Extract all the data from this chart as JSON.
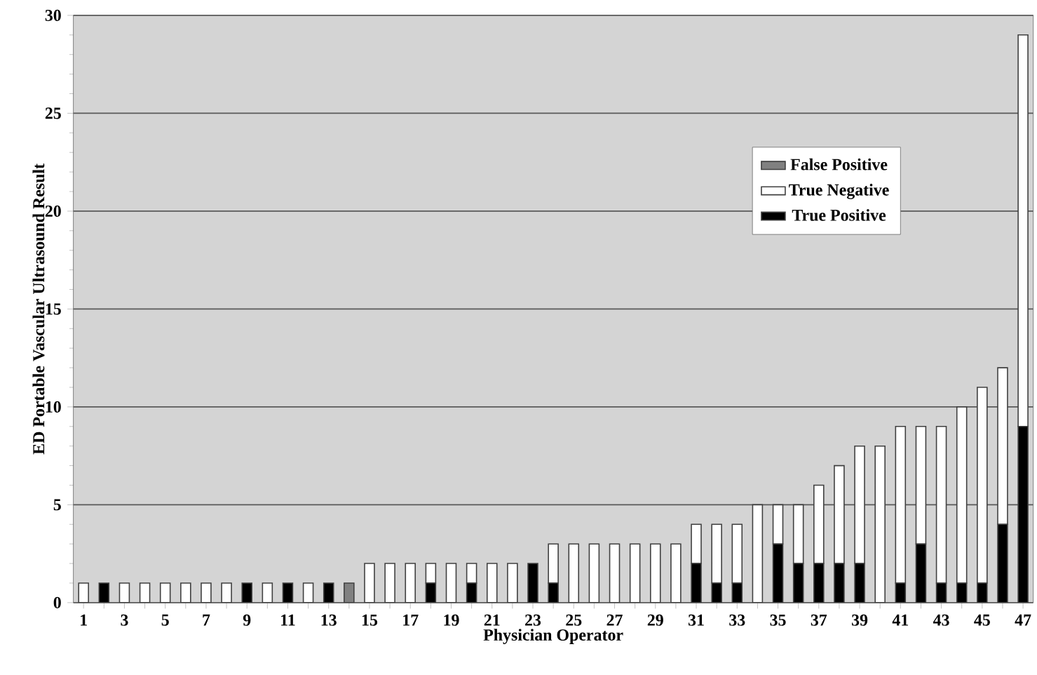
{
  "chart_data": {
    "type": "bar",
    "stacked": true,
    "xlabel": "Physician Operator",
    "ylabel": "ED Portable Vascular Ultrasound Result",
    "categories": [
      "1",
      null,
      "3",
      null,
      "5",
      null,
      "7",
      null,
      "9",
      null,
      "11",
      null,
      "13",
      null,
      "15",
      null,
      "17",
      null,
      "19",
      null,
      "21",
      null,
      "23",
      null,
      "25",
      null,
      "27",
      null,
      "29",
      null,
      "31",
      null,
      "33",
      null,
      "35",
      null,
      "37",
      null,
      "39",
      null,
      "41",
      null,
      "43",
      null,
      "45",
      null,
      "47"
    ],
    "series": [
      {
        "name": "True Positive",
        "color": "#000000",
        "values": [
          0,
          1,
          0,
          0,
          0,
          0,
          0,
          0,
          1,
          0,
          1,
          0,
          1,
          0,
          0,
          0,
          0,
          1,
          0,
          1,
          0,
          0,
          2,
          1,
          0,
          0,
          0,
          0,
          0,
          0,
          2,
          1,
          1,
          0,
          3,
          2,
          2,
          2,
          2,
          0,
          1,
          3,
          1,
          1,
          1,
          4,
          9
        ]
      },
      {
        "name": "True Negative",
        "color": "#ffffff",
        "values": [
          1,
          0,
          1,
          1,
          1,
          1,
          1,
          1,
          0,
          1,
          0,
          1,
          0,
          0,
          2,
          2,
          2,
          1,
          2,
          1,
          2,
          2,
          0,
          2,
          3,
          3,
          3,
          3,
          3,
          3,
          2,
          3,
          3,
          5,
          2,
          3,
          4,
          5,
          6,
          8,
          8,
          6,
          8,
          9,
          10,
          8,
          20
        ]
      },
      {
        "name": "False Positive",
        "color": "#808080",
        "values": [
          0,
          0,
          0,
          0,
          0,
          0,
          0,
          0,
          0,
          0,
          0,
          0,
          0,
          1,
          0,
          0,
          0,
          0,
          0,
          0,
          0,
          0,
          0,
          0,
          0,
          0,
          0,
          0,
          0,
          0,
          0,
          0,
          0,
          0,
          0,
          0,
          0,
          0,
          0,
          0,
          0,
          0,
          0,
          0,
          0,
          0,
          0
        ]
      }
    ],
    "ylim": [
      0,
      30
    ],
    "yticks": [
      0,
      5,
      10,
      15,
      20,
      25,
      30
    ],
    "grid": "y",
    "legend": "top right"
  }
}
